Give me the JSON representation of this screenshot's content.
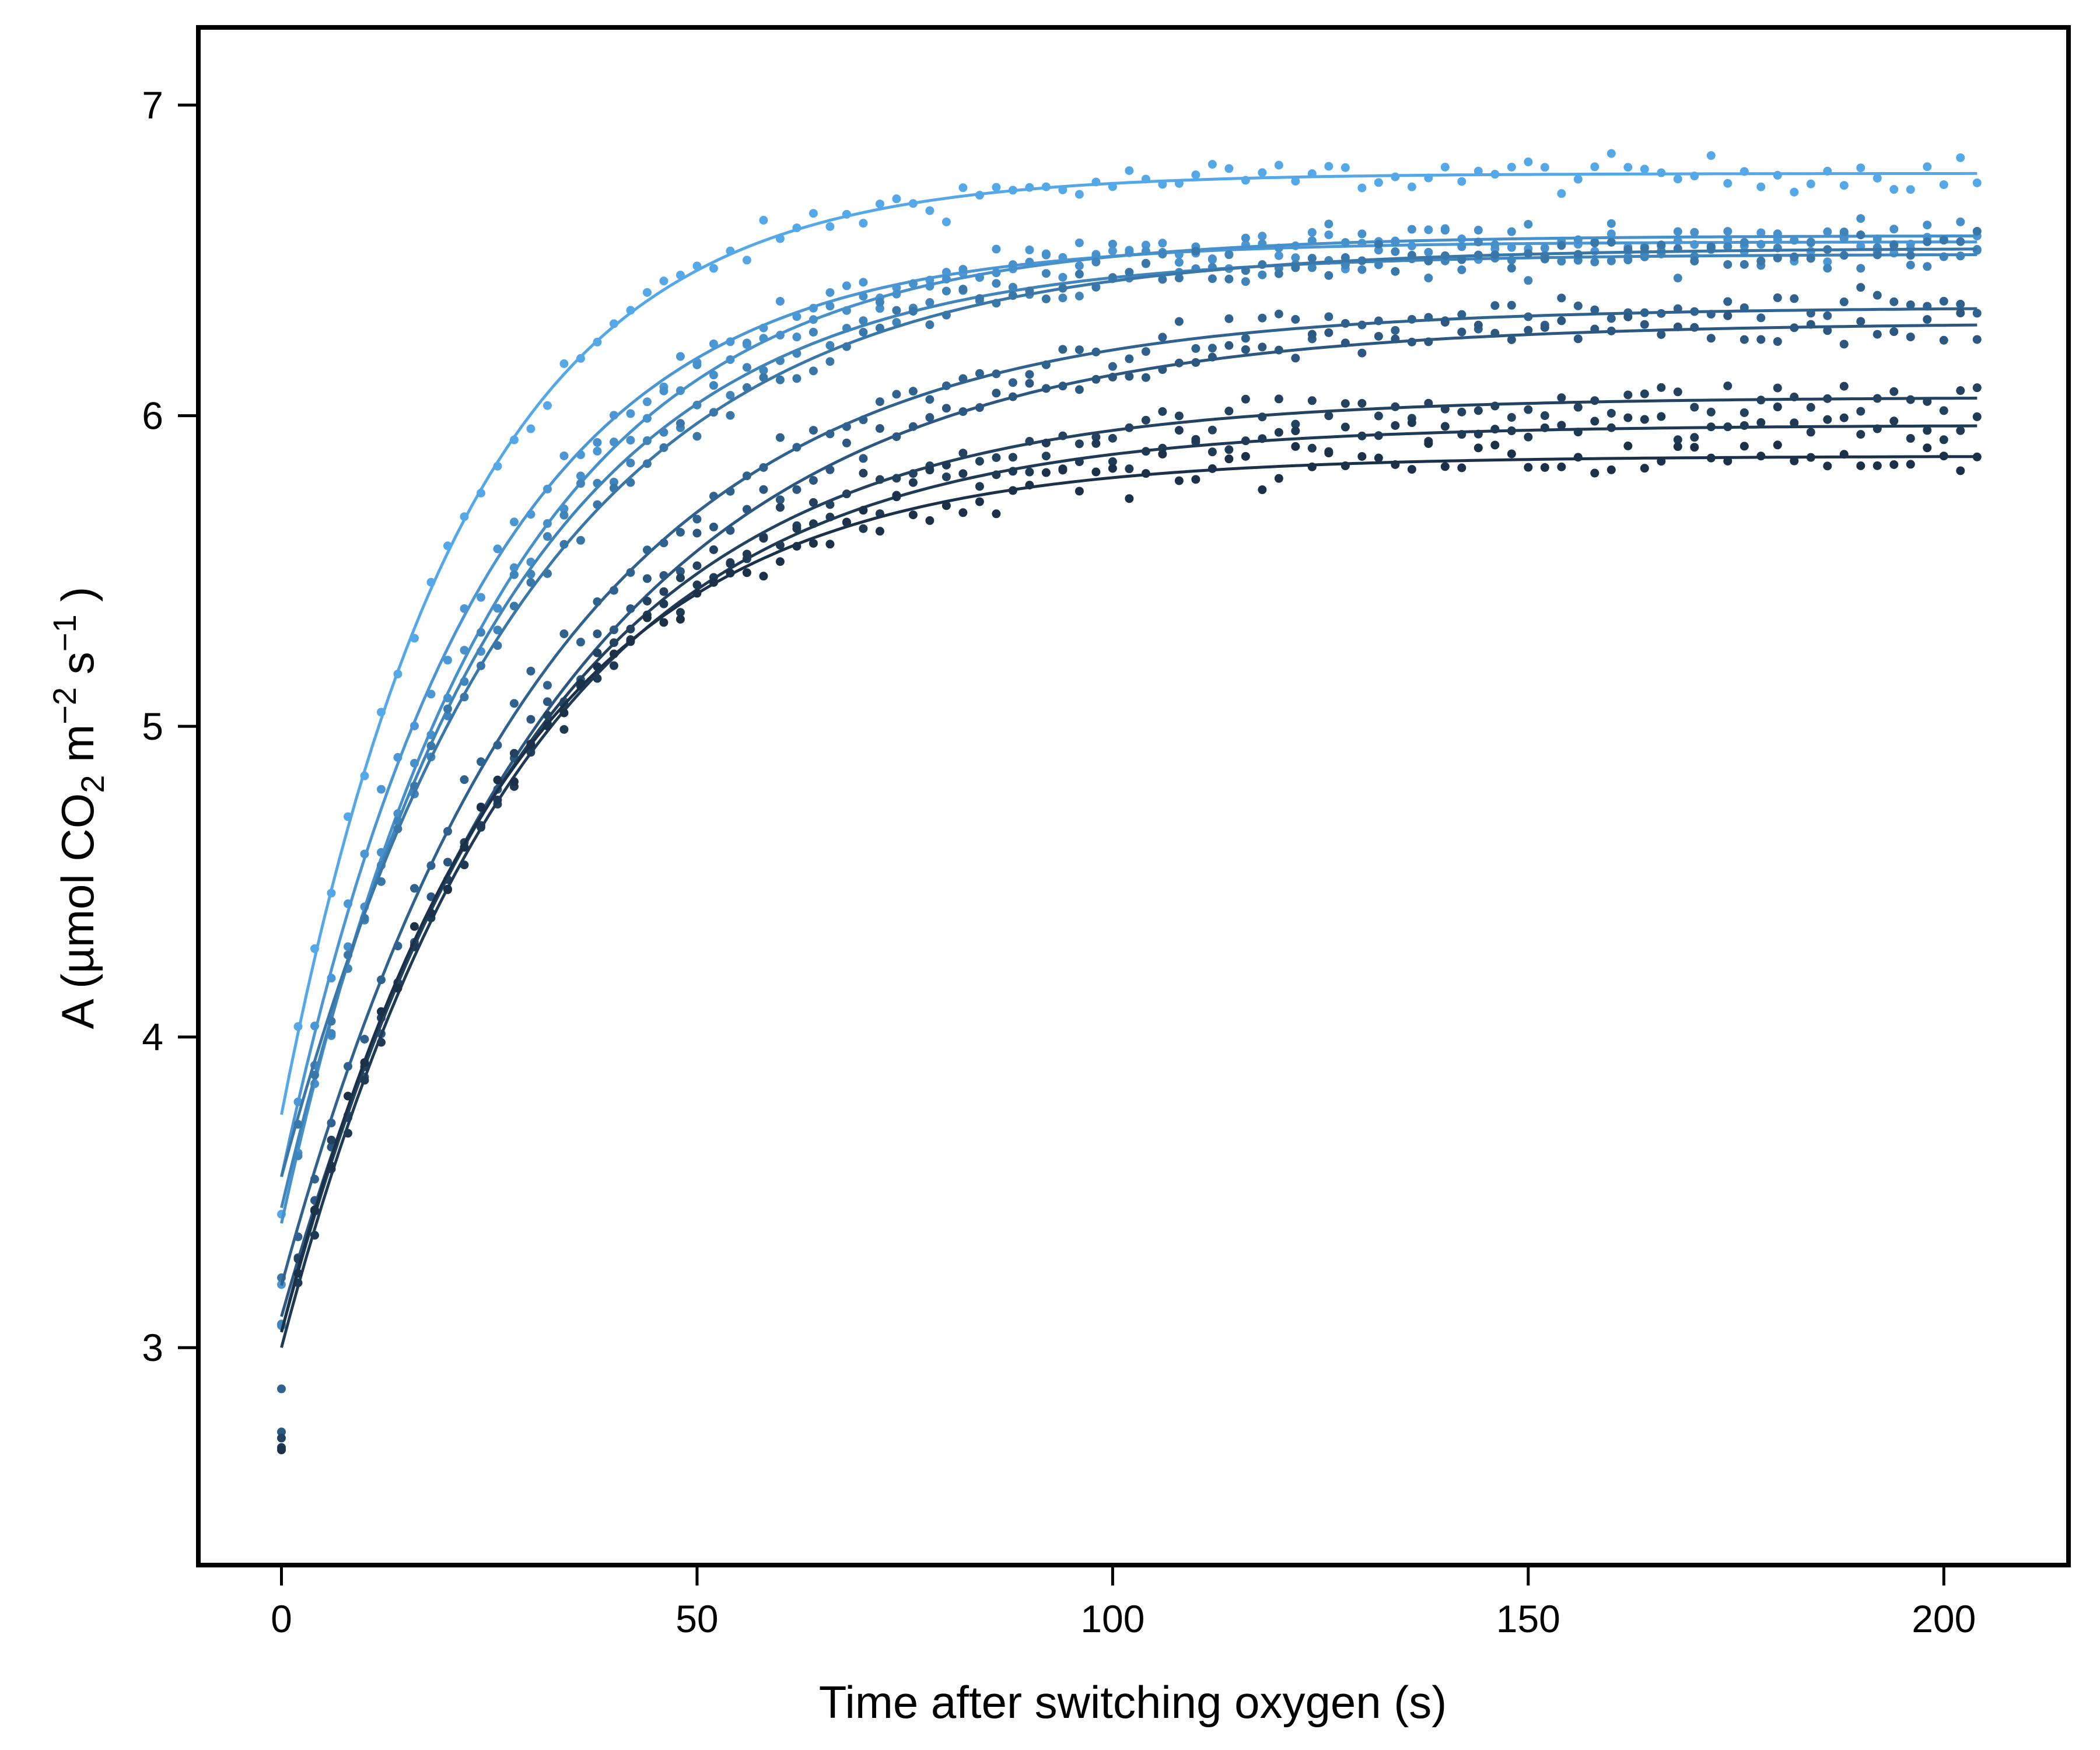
{
  "chart_data": {
    "type": "scatter",
    "title": "",
    "xlabel": "Time after switching oxygen (s)",
    "ylabel": {
      "prefix": "A (µmol CO",
      "sub": "2",
      "mid1": " m",
      "sup1": "−2",
      "mid2": " s",
      "sup2": "−1",
      "suffix": " )"
    },
    "xlim": [
      -10,
      215
    ],
    "ylim": [
      2.3,
      7.25
    ],
    "xticks": [
      0,
      50,
      100,
      150,
      200
    ],
    "yticks": [
      3,
      4,
      5,
      6,
      7
    ],
    "grid": false,
    "legend": "none",
    "sample_interval_s": 2,
    "t_max_s": 204,
    "series": [
      {
        "color": "#55a8e8",
        "A0": 3.75,
        "Amax": 6.78,
        "tau": 22.0
      },
      {
        "color": "#4b97d6",
        "A0": 3.55,
        "Amax": 6.56,
        "tau": 24.0
      },
      {
        "color": "#4690cc",
        "A0": 3.4,
        "Amax": 6.58,
        "tau": 26.0
      },
      {
        "color": "#3f84bb",
        "A0": 3.45,
        "Amax": 6.52,
        "tau": 27.0
      },
      {
        "color": "#3a77a9",
        "A0": 3.55,
        "Amax": 6.54,
        "tau": 30.0
      },
      {
        "color": "#30628f",
        "A0": 3.2,
        "Amax": 6.35,
        "tau": 32.0
      },
      {
        "color": "#2b5780",
        "A0": 3.1,
        "Amax": 6.3,
        "tau": 34.0
      },
      {
        "color": "#23425f",
        "A0": 3.05,
        "Amax": 6.06,
        "tau": 30.0
      },
      {
        "color": "#1f3a55",
        "A0": 3.0,
        "Amax": 5.97,
        "tau": 29.0
      },
      {
        "color": "#1b3149",
        "A0": 3.05,
        "Amax": 5.87,
        "tau": 27.0
      }
    ]
  }
}
